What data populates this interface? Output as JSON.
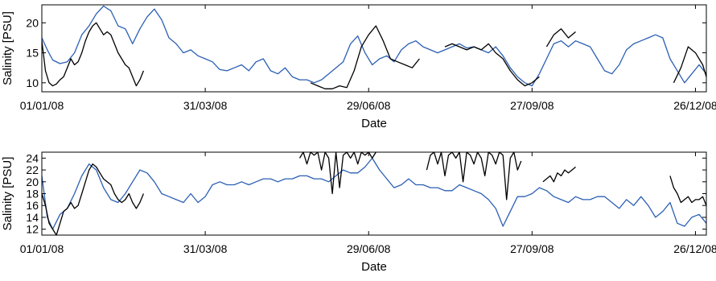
{
  "chart_data": [
    {
      "type": "line",
      "xlabel": "Date",
      "ylabel": "Salinity [PSU]",
      "x_tick_labels": [
        "01/01/08",
        "31/03/08",
        "29/06/08",
        "27/09/08",
        "26/12/08"
      ],
      "x_tick_days": [
        0,
        90,
        180,
        270,
        360
      ],
      "xlim_days": [
        0,
        366
      ],
      "y_ticks": [
        10,
        15,
        20
      ],
      "ylim": [
        8.5,
        23
      ],
      "grid": false,
      "series": [
        {
          "color": "#2b5fb4",
          "x_days": [
            0,
            3,
            6,
            10,
            14,
            18,
            22,
            26,
            30,
            34,
            38,
            42,
            46,
            50,
            54,
            58,
            62,
            66,
            70,
            74,
            78,
            82,
            86,
            90,
            94,
            98,
            102,
            106,
            110,
            114,
            118,
            122,
            126,
            130,
            134,
            138,
            142,
            146,
            150,
            154,
            158,
            162,
            166,
            170,
            174,
            178,
            182,
            186,
            190,
            194,
            198,
            202,
            206,
            210,
            214,
            218,
            222,
            226,
            230,
            234,
            238,
            242,
            246,
            250,
            254,
            258,
            262,
            266,
            270,
            274,
            278,
            282,
            286,
            290,
            294,
            298,
            302,
            306,
            310,
            314,
            318,
            322,
            326,
            330,
            334,
            338,
            342,
            346,
            350,
            354,
            358,
            362,
            366
          ],
          "values": [
            17.5,
            15.5,
            13.8,
            13.2,
            13.5,
            15,
            18,
            19.5,
            21.5,
            22.8,
            22,
            19.5,
            19,
            16.5,
            19,
            21,
            22.3,
            20.5,
            17.5,
            16.5,
            15,
            15.5,
            14.5,
            14,
            13.5,
            12.2,
            12,
            12.5,
            13,
            12,
            13.5,
            14,
            12,
            11.5,
            12.5,
            11,
            10.5,
            10.5,
            10,
            10.5,
            11.5,
            12.5,
            13.5,
            16.5,
            17.8,
            15,
            13,
            14,
            14.5,
            13.5,
            15.5,
            16.5,
            17,
            16,
            15.5,
            15,
            15.5,
            16,
            16.5,
            15.8,
            16,
            15.5,
            15,
            16,
            14.5,
            12.5,
            11,
            10,
            9.5,
            11.5,
            14,
            16.5,
            17,
            16,
            17,
            16.5,
            16,
            14,
            12,
            11.5,
            13,
            15.5,
            16.5,
            17,
            17.5,
            18,
            17.5,
            14,
            12,
            10,
            11.5,
            13,
            11.5
          ]
        },
        {
          "color": "#000000",
          "x_days": [
            0,
            2,
            4,
            6,
            8,
            10,
            12,
            14,
            16,
            18,
            20,
            22,
            24,
            26,
            28,
            30,
            32,
            34,
            36,
            38,
            40,
            42,
            44,
            46,
            48,
            50,
            52,
            54,
            56
          ],
          "values": [
            17,
            12,
            10,
            9.5,
            9.8,
            10.5,
            11,
            12.5,
            14,
            13,
            13.5,
            15,
            17,
            18.5,
            19.5,
            20,
            19,
            18,
            18.5,
            18,
            16.5,
            15,
            14,
            13,
            12.5,
            11,
            9.5,
            10.5,
            12
          ],
          "segments": [
            {
              "x_days": [
                148,
                152,
                156,
                160,
                164,
                168,
                172,
                176,
                180,
                184,
                188,
                192,
                196,
                200,
                204,
                208
              ],
              "values": [
                10,
                9.5,
                9,
                9,
                9.5,
                9.2,
                12,
                16,
                18,
                19.5,
                17,
                14,
                13.5,
                13,
                12.5,
                14
              ]
            },
            {
              "x_days": [
                222,
                226,
                230,
                234,
                238,
                242,
                246,
                250,
                254,
                258,
                262,
                266,
                270,
                274
              ],
              "values": [
                16,
                16.5,
                16,
                15.5,
                16,
                15.5,
                16.5,
                15,
                14,
                12,
                10.5,
                9.5,
                10,
                11
              ]
            },
            {
              "x_days": [
                278,
                282,
                286,
                290,
                294
              ],
              "values": [
                16,
                18,
                19,
                17.5,
                18.5
              ]
            },
            {
              "x_days": [
                348,
                352,
                356,
                360,
                364,
                366
              ],
              "values": [
                10,
                12.5,
                16,
                15,
                13,
                11
              ]
            }
          ]
        }
      ]
    },
    {
      "type": "line",
      "xlabel": "Date",
      "ylabel": "Salinity [PSU]",
      "x_tick_labels": [
        "01/01/08",
        "31/03/08",
        "29/06/08",
        "27/09/08",
        "26/12/08"
      ],
      "x_tick_days": [
        0,
        90,
        180,
        270,
        360
      ],
      "xlim_days": [
        0,
        366
      ],
      "y_ticks": [
        12,
        14,
        16,
        18,
        20,
        22,
        24
      ],
      "ylim": [
        11,
        25
      ],
      "grid": false,
      "series": [
        {
          "color": "#2b5fb4",
          "x_days": [
            0,
            3,
            6,
            10,
            14,
            18,
            22,
            26,
            30,
            34,
            38,
            42,
            46,
            50,
            54,
            58,
            62,
            66,
            70,
            74,
            78,
            82,
            86,
            90,
            94,
            98,
            102,
            106,
            110,
            114,
            118,
            122,
            126,
            130,
            134,
            138,
            142,
            146,
            150,
            154,
            158,
            162,
            166,
            170,
            174,
            178,
            182,
            186,
            190,
            194,
            198,
            202,
            206,
            210,
            214,
            218,
            222,
            226,
            230,
            234,
            238,
            242,
            246,
            250,
            254,
            258,
            262,
            266,
            270,
            274,
            278,
            282,
            286,
            290,
            294,
            298,
            302,
            306,
            310,
            314,
            318,
            322,
            326,
            330,
            334,
            338,
            342,
            346,
            350,
            354,
            358,
            362,
            366
          ],
          "values": [
            21,
            14,
            12,
            14.5,
            15.5,
            18,
            21,
            23,
            22,
            19,
            17,
            16.5,
            18,
            20,
            22,
            21.5,
            20,
            18,
            17.5,
            17,
            16.5,
            18,
            16.5,
            17.5,
            19.5,
            20,
            19.5,
            19.5,
            20,
            19.5,
            20,
            20.5,
            20.5,
            20,
            20.5,
            20.5,
            21,
            21,
            20.5,
            20.5,
            20,
            21,
            22,
            21.5,
            21.5,
            22.5,
            24,
            22,
            20.5,
            19,
            19.5,
            20.5,
            19.5,
            19.5,
            19,
            19,
            18.5,
            18.5,
            19.5,
            19,
            18.5,
            18,
            17,
            15.5,
            12.5,
            15,
            17.5,
            17.5,
            18,
            19,
            18.5,
            17.5,
            17,
            16.5,
            17.5,
            17,
            17,
            17.5,
            17.5,
            16.5,
            15.5,
            17,
            16,
            17.5,
            16,
            14,
            15,
            16.5,
            13,
            12.5,
            14,
            14.5,
            13
          ]
        },
        {
          "color": "#000000",
          "x_days": [
            0,
            2,
            4,
            6,
            8,
            10,
            12,
            14,
            16,
            18,
            20,
            22,
            24,
            26,
            28,
            30,
            32,
            34,
            36,
            38,
            40,
            42,
            44,
            46,
            48,
            50,
            52,
            54,
            56
          ],
          "values": [
            18,
            16,
            13,
            12,
            11,
            13,
            15,
            15.5,
            16.5,
            15.5,
            16,
            18,
            20,
            22,
            23,
            22.5,
            21.5,
            20.5,
            20,
            19.5,
            18,
            17,
            16.5,
            17,
            18,
            16.5,
            15.5,
            16.5,
            18
          ],
          "segments": [
            {
              "x_days": [
                142,
                144,
                146,
                148,
                150,
                152,
                154,
                156,
                158,
                160,
                162,
                164,
                166,
                168,
                170,
                172,
                174,
                176,
                178,
                180,
                182,
                184
              ],
              "values": [
                24,
                25,
                23,
                25,
                24.5,
                25,
                22,
                25,
                24,
                18,
                25,
                19,
                24.5,
                25,
                24,
                25,
                23,
                25,
                24.5,
                25,
                24,
                25
              ]
            },
            {
              "x_days": [
                212,
                214,
                216,
                218,
                220,
                222,
                224,
                226,
                228,
                230,
                232,
                234,
                236,
                238,
                240,
                242,
                244,
                246,
                248,
                250,
                252,
                254,
                256,
                258,
                260,
                262,
                264
              ],
              "values": [
                22,
                24.5,
                25,
                23,
                25,
                21,
                24.5,
                25,
                24,
                25,
                20,
                25,
                24.5,
                23,
                25,
                24,
                21,
                25,
                24.5,
                23,
                25,
                24.5,
                17,
                24,
                25,
                22,
                23.5
              ]
            },
            {
              "x_days": [
                276,
                278,
                280,
                282,
                284,
                286,
                288,
                290,
                292,
                294
              ],
              "values": [
                20,
                20.5,
                21,
                20,
                21.5,
                21,
                22,
                21.5,
                22,
                22.5
              ]
            },
            {
              "x_days": [
                346,
                348,
                350,
                352,
                354,
                356,
                358,
                360,
                362,
                364,
                366
              ],
              "values": [
                21,
                19,
                18,
                16.5,
                17,
                17.5,
                16.5,
                17,
                17,
                17.5,
                16
              ]
            }
          ]
        }
      ]
    }
  ]
}
